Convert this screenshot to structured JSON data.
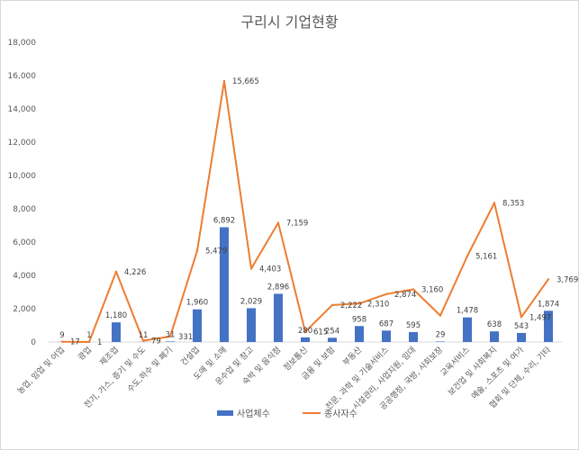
{
  "chart_data": {
    "type": "bar",
    "title": "구리시 기업현황",
    "categories": [
      "농업, 임업 및 어업",
      "광업",
      "제조업",
      "전기, 가스, 증기 및 수도",
      "수도,하수 및 폐기",
      "건설업",
      "도매 및 소매",
      "운수업 및 창고",
      "숙박 및 음식점",
      "정보통신",
      "금융 및 보험",
      "부동산",
      "전문, 과학 및 기술서비스",
      "시설관리, 사업지원, 임대",
      "공공행정, 국방, 사회보장",
      "교육서비스",
      "보건업 및 사회복지",
      "예술, 스포츠 및 여가",
      "협회 및 단체, 수리, 기타"
    ],
    "series": [
      {
        "name": "사업체수",
        "type": "bar",
        "color": "#4472c4",
        "values": [
          9,
          1,
          1180,
          11,
          31,
          1960,
          6892,
          2029,
          2896,
          280,
          254,
          958,
          687,
          595,
          29,
          1478,
          638,
          543,
          1874
        ],
        "labels": [
          "9",
          "1",
          "1,180",
          "11",
          "31",
          "1,960",
          "6,892",
          "2,029",
          "2,896",
          "280",
          "254",
          "958",
          "687",
          "595",
          "29",
          "1,478",
          "638",
          "543",
          "1,874"
        ]
      },
      {
        "name": "종사자수",
        "type": "line",
        "color": "#ed7d31",
        "values": [
          17,
          1,
          4226,
          79,
          331,
          5479,
          15665,
          4403,
          7159,
          615,
          2222,
          2310,
          2874,
          3160,
          1589,
          5161,
          8353,
          1497,
          3769
        ],
        "labels": [
          "17",
          "1",
          "4,226",
          "79",
          "331",
          "5,479",
          "15,665",
          "4,403",
          "7,159",
          "615",
          "2,222",
          "2,310",
          "2,874",
          "3,160",
          "",
          "5,161",
          "8,353",
          "1,497",
          "3,769"
        ]
      }
    ],
    "ylim": [
      0,
      18000
    ],
    "yticks": [
      "0",
      "2,000",
      "4,000",
      "6,000",
      "8,000",
      "10,000",
      "12,000",
      "14,000",
      "16,000",
      "18,000"
    ],
    "grid": false,
    "legend": "bottom"
  }
}
